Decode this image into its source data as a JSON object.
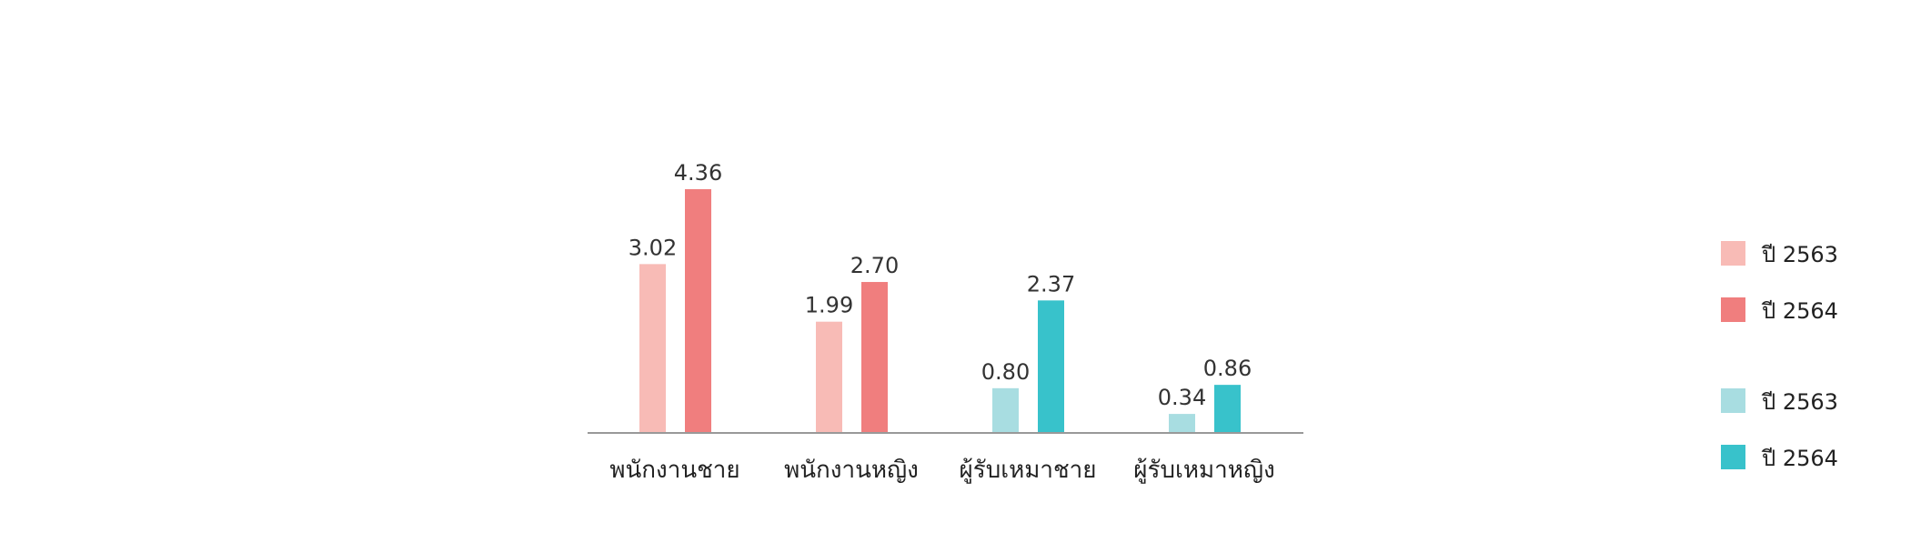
{
  "chart_data": {
    "type": "bar",
    "categories": [
      "พนักงานชาย",
      "พนักงานหญิง",
      "ผู้รับเหมาชาย",
      "ผู้รับเหมาหญิง"
    ],
    "series": [
      {
        "name": "ปี 2563",
        "values": [
          3.02,
          1.99,
          0.8,
          0.34
        ],
        "value_labels": [
          "3.02",
          "1.99",
          "0.80",
          "0.34"
        ],
        "colors": [
          "#f8bbb6",
          "#f8bbb6",
          "#a8dde1",
          "#a8dde1"
        ]
      },
      {
        "name": "ปี 2564",
        "values": [
          4.36,
          2.7,
          2.37,
          0.86
        ],
        "value_labels": [
          "4.36",
          "2.70",
          "2.37",
          "0.86"
        ],
        "colors": [
          "#f07e7e",
          "#f07e7e",
          "#38c2cb",
          "#38c2cb"
        ]
      }
    ],
    "ylim": [
      0,
      4.36
    ],
    "grid": false,
    "legend_position": "right",
    "legend": [
      {
        "label": "ปี 2563",
        "color": "#f8bbb6"
      },
      {
        "label": "ปี 2564",
        "color": "#f07e7e"
      },
      {
        "label": "ปี 2563",
        "color": "#a8dde1"
      },
      {
        "label": "ปี 2564",
        "color": "#38c2cb"
      }
    ],
    "axis_color": "#999999"
  }
}
